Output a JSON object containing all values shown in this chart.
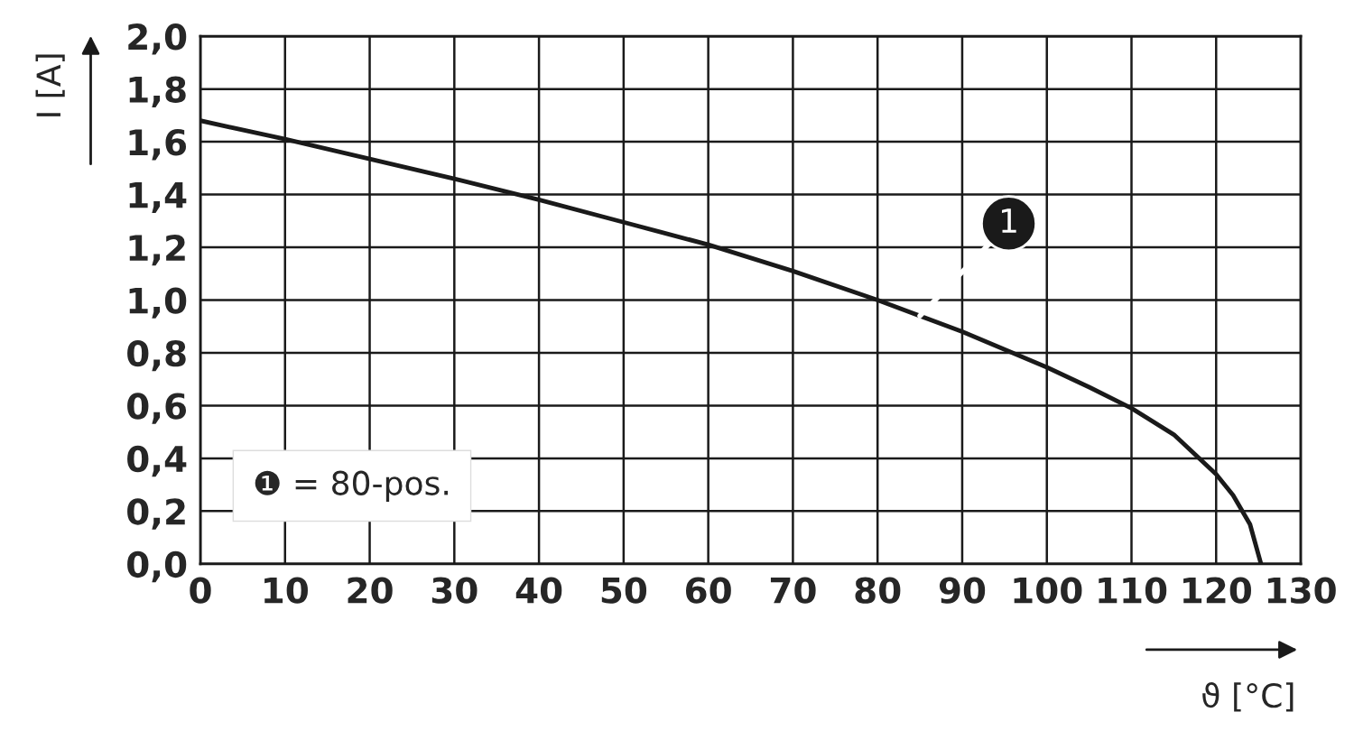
{
  "chart_data": {
    "type": "line",
    "xlabel": "ϑ [°C]",
    "ylabel": "I [A]",
    "series": [
      {
        "name": "❶ = 80-pos.",
        "color": "#1a1a1a",
        "x": [
          0,
          10,
          20,
          30,
          40,
          50,
          60,
          70,
          80,
          90,
          100,
          105,
          110,
          115,
          120,
          122,
          124,
          125.3
        ],
        "values": [
          1.68,
          1.61,
          1.535,
          1.46,
          1.38,
          1.295,
          1.21,
          1.11,
          1.0,
          0.88,
          0.745,
          0.67,
          0.59,
          0.49,
          0.34,
          0.26,
          0.15,
          0.0
        ]
      }
    ],
    "annotations": [
      {
        "text": "1",
        "x": 85,
        "y": 0.94
      }
    ],
    "xlim": [
      0,
      130
    ],
    "xticks": [
      0,
      10,
      20,
      30,
      40,
      50,
      60,
      70,
      80,
      90,
      100,
      110,
      120,
      130
    ],
    "ylim": [
      0,
      2
    ],
    "yticks": [
      {
        "value": 0,
        "label": "0,0"
      },
      {
        "value": 0.2,
        "label": "0,2"
      },
      {
        "value": 0.4,
        "label": "0,4"
      },
      {
        "value": 0.6,
        "label": "0,6"
      },
      {
        "value": 0.8,
        "label": "0,8"
      },
      {
        "value": 1.0,
        "label": "1,0"
      },
      {
        "value": 1.2,
        "label": "1,2"
      },
      {
        "value": 1.4,
        "label": "1,4"
      },
      {
        "value": 1.6,
        "label": "1,6"
      },
      {
        "value": 1.8,
        "label": "1,8"
      },
      {
        "value": 2.0,
        "label": "2,0"
      }
    ],
    "grid": true,
    "legend": "bottom left",
    "marker": "none",
    "line_style": "solid"
  }
}
